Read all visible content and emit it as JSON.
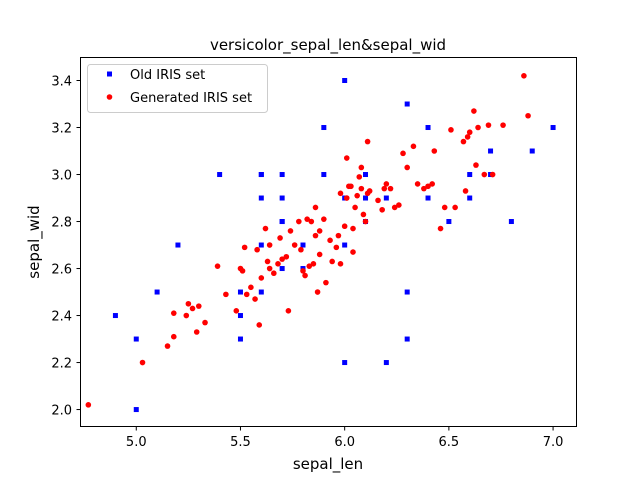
{
  "chart_data": {
    "type": "scatter",
    "title": "versicolor_sepal_len&sepal_wid",
    "xlabel": "sepal_len",
    "ylabel": "sepal_wid",
    "xlim": [
      4.73,
      7.11
    ],
    "ylim": [
      1.93,
      3.5
    ],
    "x_ticks": [
      5.0,
      5.5,
      6.0,
      6.5,
      7.0
    ],
    "x_tick_labels": [
      "5.0",
      "5.5",
      "6.0",
      "6.5",
      "7.0"
    ],
    "y_ticks": [
      2.0,
      2.2,
      2.4,
      2.6,
      2.8,
      3.0,
      3.2,
      3.4
    ],
    "y_tick_labels": [
      "2.0",
      "2.2",
      "2.4",
      "2.6",
      "2.8",
      "3.0",
      "3.2",
      "3.4"
    ],
    "grid": false,
    "legend_position": "top-left",
    "series": [
      {
        "name": "Old IRIS set",
        "marker": "square",
        "color": "#0000ff",
        "points": [
          [
            7.0,
            3.2
          ],
          [
            6.4,
            3.2
          ],
          [
            6.9,
            3.1
          ],
          [
            5.5,
            2.3
          ],
          [
            6.5,
            2.8
          ],
          [
            5.7,
            2.8
          ],
          [
            6.3,
            3.3
          ],
          [
            4.9,
            2.4
          ],
          [
            6.6,
            2.9
          ],
          [
            5.2,
            2.7
          ],
          [
            5.0,
            2.0
          ],
          [
            5.9,
            3.0
          ],
          [
            6.0,
            2.2
          ],
          [
            6.1,
            2.9
          ],
          [
            5.6,
            2.9
          ],
          [
            6.7,
            3.1
          ],
          [
            5.6,
            3.0
          ],
          [
            5.8,
            2.7
          ],
          [
            6.2,
            2.2
          ],
          [
            5.6,
            2.5
          ],
          [
            5.9,
            3.2
          ],
          [
            6.1,
            2.8
          ],
          [
            6.3,
            2.5
          ],
          [
            6.4,
            2.9
          ],
          [
            6.6,
            3.0
          ],
          [
            6.8,
            2.8
          ],
          [
            6.7,
            3.0
          ],
          [
            6.0,
            2.9
          ],
          [
            5.7,
            2.6
          ],
          [
            5.5,
            2.4
          ],
          [
            6.0,
            2.7
          ],
          [
            5.4,
            3.0
          ],
          [
            6.0,
            3.4
          ],
          [
            6.3,
            2.3
          ],
          [
            5.6,
            3.0
          ],
          [
            5.5,
            2.5
          ],
          [
            6.1,
            3.0
          ],
          [
            5.8,
            2.6
          ],
          [
            5.0,
            2.3
          ],
          [
            5.6,
            2.7
          ],
          [
            5.7,
            3.0
          ],
          [
            5.7,
            2.9
          ],
          [
            6.2,
            2.9
          ],
          [
            5.1,
            2.5
          ],
          [
            5.7,
            2.8
          ]
        ]
      },
      {
        "name": "Generated IRIS set",
        "marker": "circle",
        "color": "#ff0000",
        "points": [
          [
            4.77,
            2.02
          ],
          [
            5.03,
            2.2
          ],
          [
            5.15,
            2.27
          ],
          [
            5.18,
            2.31
          ],
          [
            5.18,
            2.41
          ],
          [
            5.24,
            2.4
          ],
          [
            5.25,
            2.45
          ],
          [
            5.27,
            2.43
          ],
          [
            5.3,
            2.44
          ],
          [
            5.29,
            2.33
          ],
          [
            5.33,
            2.37
          ],
          [
            5.39,
            2.61
          ],
          [
            5.43,
            2.49
          ],
          [
            5.48,
            2.42
          ],
          [
            5.5,
            2.6
          ],
          [
            5.51,
            2.59
          ],
          [
            5.52,
            2.69
          ],
          [
            5.53,
            2.49
          ],
          [
            5.55,
            2.52
          ],
          [
            5.57,
            2.47
          ],
          [
            5.58,
            2.68
          ],
          [
            5.59,
            2.36
          ],
          [
            5.6,
            2.56
          ],
          [
            5.62,
            2.77
          ],
          [
            5.63,
            2.63
          ],
          [
            5.64,
            2.7
          ],
          [
            5.64,
            2.6
          ],
          [
            5.66,
            2.58
          ],
          [
            5.68,
            2.62
          ],
          [
            5.69,
            2.73
          ],
          [
            5.7,
            2.64
          ],
          [
            5.72,
            2.65
          ],
          [
            5.73,
            2.42
          ],
          [
            5.74,
            2.76
          ],
          [
            5.76,
            2.7
          ],
          [
            5.78,
            2.8
          ],
          [
            5.79,
            2.68
          ],
          [
            5.8,
            2.59
          ],
          [
            5.81,
            2.57
          ],
          [
            5.82,
            2.81
          ],
          [
            5.83,
            2.61
          ],
          [
            5.84,
            2.8
          ],
          [
            5.85,
            2.62
          ],
          [
            5.86,
            2.74
          ],
          [
            5.86,
            2.86
          ],
          [
            5.87,
            2.5
          ],
          [
            5.88,
            2.66
          ],
          [
            5.88,
            2.76
          ],
          [
            5.9,
            2.81
          ],
          [
            5.91,
            2.54
          ],
          [
            5.93,
            2.72
          ],
          [
            5.94,
            2.63
          ],
          [
            5.96,
            2.69
          ],
          [
            5.97,
            2.74
          ],
          [
            5.98,
            2.62
          ],
          [
            5.98,
            2.92
          ],
          [
            6.0,
            2.78
          ],
          [
            6.01,
            2.9
          ],
          [
            6.02,
            2.95
          ],
          [
            6.03,
            2.95
          ],
          [
            6.04,
            2.77
          ],
          [
            6.04,
            2.67
          ],
          [
            6.05,
            2.86
          ],
          [
            6.06,
            2.91
          ],
          [
            6.07,
            2.99
          ],
          [
            6.08,
            2.94
          ],
          [
            6.08,
            3.03
          ],
          [
            6.09,
            2.83
          ],
          [
            6.1,
            2.8
          ],
          [
            6.11,
            2.92
          ],
          [
            6.11,
            3.14
          ],
          [
            6.12,
            2.93
          ],
          [
            6.16,
            2.89
          ],
          [
            6.18,
            2.85
          ],
          [
            6.19,
            2.94
          ],
          [
            6.2,
            2.96
          ],
          [
            6.22,
            2.94
          ],
          [
            6.24,
            2.86
          ],
          [
            6.26,
            2.87
          ],
          [
            6.28,
            3.09
          ],
          [
            6.3,
            3.03
          ],
          [
            6.33,
            3.12
          ],
          [
            6.35,
            2.96
          ],
          [
            6.38,
            2.94
          ],
          [
            6.4,
            2.95
          ],
          [
            6.42,
            2.96
          ],
          [
            6.43,
            3.1
          ],
          [
            6.46,
            2.77
          ],
          [
            6.48,
            2.86
          ],
          [
            6.51,
            3.19
          ],
          [
            6.53,
            2.86
          ],
          [
            6.57,
            3.14
          ],
          [
            6.58,
            2.93
          ],
          [
            6.59,
            3.16
          ],
          [
            6.6,
            3.18
          ],
          [
            6.62,
            3.27
          ],
          [
            6.63,
            3.04
          ],
          [
            6.64,
            3.2
          ],
          [
            6.67,
            3.0
          ],
          [
            6.69,
            3.21
          ],
          [
            6.71,
            3.0
          ],
          [
            6.76,
            3.21
          ],
          [
            6.86,
            3.42
          ],
          [
            6.88,
            3.25
          ],
          [
            6.01,
            3.07
          ]
        ]
      }
    ]
  }
}
